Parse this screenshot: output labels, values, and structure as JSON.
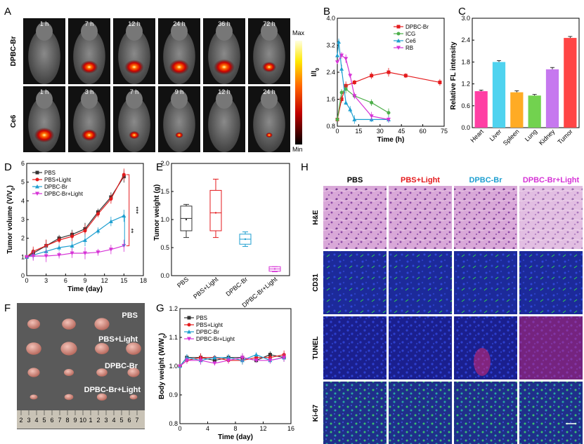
{
  "panels": {
    "A": {
      "label": "A",
      "rows": [
        {
          "name": "DPBC-Br",
          "times": [
            "1 h",
            "7 h",
            "12 h",
            "24 h",
            "36 h",
            "72 h"
          ],
          "signal": [
            0,
            0.7,
            0.8,
            0.85,
            0.9,
            0.5
          ]
        },
        {
          "name": "Ce6",
          "times": [
            "1 h",
            "3 h",
            "7 h",
            "9 h",
            "12 h",
            "24 h"
          ],
          "signal": [
            0.85,
            0.6,
            0.3,
            0.15,
            0,
            0.08
          ]
        }
      ],
      "colorbar": {
        "max": "Max",
        "min": "Min"
      }
    },
    "F": {
      "label": "F",
      "groups": [
        "PBS",
        "PBS+Light",
        "DPBC-Br",
        "DPBC-Br+Light"
      ],
      "ruler": [
        "2",
        "3",
        "4",
        "5",
        "6",
        "7",
        "8",
        "9",
        "10",
        "1",
        "2",
        "3",
        "4",
        "5",
        "6",
        "7"
      ]
    },
    "H": {
      "label": "H",
      "columns": [
        {
          "name": "PBS",
          "color": "#000000"
        },
        {
          "name": "PBS+Light",
          "color": "#e41a1c"
        },
        {
          "name": "DPBC-Br",
          "color": "#1e9fd0"
        },
        {
          "name": "DPBC-Br+Light",
          "color": "#d633d6"
        }
      ],
      "rows": [
        "H&E",
        "CD31",
        "TUNEL",
        "Ki-67"
      ]
    }
  },
  "chart_data": [
    {
      "panel": "B",
      "type": "line",
      "xlabel": "Time (h)",
      "ylabel": "I/I0",
      "xlim": [
        0,
        75
      ],
      "ylim": [
        0.8,
        4.0
      ],
      "xticks": [
        0,
        15,
        30,
        45,
        60,
        75
      ],
      "yticks": [
        0.8,
        1.6,
        2.4,
        3.2,
        4.0
      ],
      "legend_position": "top-right",
      "series": [
        {
          "name": "DPBC-Br",
          "color": "#e41a1c",
          "marker": "square",
          "x": [
            0,
            3,
            6,
            12,
            24,
            36,
            48,
            72
          ],
          "y": [
            1.0,
            1.6,
            2.0,
            2.1,
            2.3,
            2.4,
            2.3,
            2.1
          ]
        },
        {
          "name": "ICG",
          "color": "#4daf4a",
          "marker": "circle",
          "x": [
            0,
            3,
            6,
            12,
            24,
            36
          ],
          "y": [
            1.0,
            1.8,
            1.9,
            1.7,
            1.5,
            1.2
          ]
        },
        {
          "name": "Ce6",
          "color": "#1e9fd0",
          "marker": "triangle",
          "x": [
            0,
            1,
            3,
            6,
            9,
            12,
            24,
            36
          ],
          "y": [
            2.9,
            3.3,
            2.5,
            1.5,
            1.3,
            1.0,
            1.0,
            1.0
          ]
        },
        {
          "name": "RB",
          "color": "#d633d6",
          "marker": "triangle-down",
          "x": [
            0,
            3,
            6,
            9,
            12,
            24,
            36
          ],
          "y": [
            2.7,
            2.9,
            2.8,
            2.3,
            1.7,
            1.1,
            1.0
          ]
        }
      ]
    },
    {
      "panel": "C",
      "type": "bar",
      "ylabel": "Relative FL intensity",
      "ylim": [
        0,
        3.0
      ],
      "yticks": [
        0.0,
        0.6,
        1.2,
        1.8,
        2.4,
        3.0
      ],
      "categories": [
        "Heart",
        "Liver",
        "Spleen",
        "Lung",
        "Kidney",
        "Tumor"
      ],
      "values": [
        1.0,
        1.8,
        0.97,
        0.88,
        1.6,
        2.46
      ],
      "errors": [
        0.03,
        0.04,
        0.04,
        0.03,
        0.05,
        0.04
      ],
      "colors": [
        "#ff3fa4",
        "#4fd3ef",
        "#ffab24",
        "#72d24f",
        "#c678ef",
        "#ff4545"
      ]
    },
    {
      "panel": "D",
      "type": "line",
      "xlabel": "Time (day)",
      "ylabel": "Tumor volume (V/V0)",
      "xlim": [
        0,
        18
      ],
      "ylim": [
        0,
        6
      ],
      "xticks": [
        0,
        3,
        6,
        9,
        12,
        15,
        18
      ],
      "yticks": [
        0,
        1,
        2,
        3,
        4,
        5,
        6
      ],
      "legend_position": "top-left",
      "annotations": [
        "***",
        "**"
      ],
      "series": [
        {
          "name": "PBS",
          "color": "#333333",
          "marker": "square",
          "x": [
            0,
            1,
            3,
            5,
            7,
            9,
            11,
            13,
            15
          ],
          "y": [
            1.0,
            1.2,
            1.6,
            2.0,
            2.2,
            2.5,
            3.4,
            4.2,
            5.3
          ]
        },
        {
          "name": "PBS+Light",
          "color": "#e41a1c",
          "marker": "circle",
          "x": [
            0,
            1,
            3,
            5,
            7,
            9,
            11,
            13,
            15
          ],
          "y": [
            1.0,
            1.3,
            1.6,
            1.9,
            2.1,
            2.4,
            3.3,
            4.1,
            5.4
          ]
        },
        {
          "name": "DPBC-Br",
          "color": "#1e9fd0",
          "marker": "triangle",
          "x": [
            0,
            1,
            3,
            5,
            7,
            9,
            11,
            13,
            15
          ],
          "y": [
            1.0,
            1.1,
            1.3,
            1.5,
            1.6,
            1.9,
            2.4,
            2.9,
            3.2
          ]
        },
        {
          "name": "DPBC-Br+Light",
          "color": "#d633d6",
          "marker": "triangle-down",
          "x": [
            0,
            1,
            3,
            5,
            7,
            9,
            11,
            13,
            15
          ],
          "y": [
            1.0,
            1.05,
            1.05,
            1.1,
            1.2,
            1.2,
            1.25,
            1.4,
            1.6
          ]
        }
      ]
    },
    {
      "panel": "E",
      "type": "box",
      "ylabel": "Tumor weight (g)",
      "ylim": [
        0.0,
        2.0
      ],
      "yticks": [
        0.0,
        0.5,
        1.0,
        1.5,
        2.0
      ],
      "categories": [
        "PBS",
        "PBS+Light",
        "DPBC-Br",
        "DPBC-Br+Light"
      ],
      "colors": [
        "#333333",
        "#e41a1c",
        "#1e9fd0",
        "#d633d6"
      ],
      "boxes": [
        {
          "min": 0.68,
          "q1": 0.8,
          "median": 1.02,
          "mean": 1.0,
          "q3": 1.24,
          "max": 1.27
        },
        {
          "min": 0.68,
          "q1": 0.8,
          "median": 1.12,
          "mean": 1.12,
          "q3": 1.52,
          "max": 1.72
        },
        {
          "min": 0.52,
          "q1": 0.56,
          "median": 0.65,
          "mean": 0.65,
          "q3": 0.74,
          "max": 0.78
        },
        {
          "min": 0.07,
          "q1": 0.08,
          "median": 0.12,
          "mean": 0.12,
          "q3": 0.16,
          "max": 0.16
        }
      ]
    },
    {
      "panel": "G",
      "type": "line",
      "xlabel": "Time (day)",
      "ylabel": "Body weight (W/W0)",
      "xlim": [
        0,
        16
      ],
      "ylim": [
        0.8,
        1.2
      ],
      "xticks": [
        0,
        4,
        8,
        12,
        16
      ],
      "yticks": [
        0.8,
        0.9,
        1.0,
        1.1,
        1.2
      ],
      "legend_position": "top-left",
      "series": [
        {
          "name": "PBS",
          "color": "#333333",
          "marker": "square",
          "x": [
            0,
            1,
            3,
            5,
            7,
            9,
            11,
            13,
            15
          ],
          "y": [
            1.0,
            1.03,
            1.03,
            1.02,
            1.03,
            1.03,
            1.02,
            1.04,
            1.03
          ]
        },
        {
          "name": "PBS+Light",
          "color": "#e41a1c",
          "marker": "circle",
          "x": [
            0,
            1,
            3,
            5,
            7,
            9,
            11,
            13,
            15
          ],
          "y": [
            1.0,
            1.02,
            1.03,
            1.03,
            1.02,
            1.02,
            1.03,
            1.03,
            1.04
          ]
        },
        {
          "name": "DPBC-Br",
          "color": "#1e9fd0",
          "marker": "triangle",
          "x": [
            0,
            1,
            3,
            5,
            7,
            9,
            11,
            13,
            15
          ],
          "y": [
            1.0,
            1.03,
            1.02,
            1.03,
            1.03,
            1.02,
            1.04,
            1.02,
            1.03
          ]
        },
        {
          "name": "DPBC-Br+Light",
          "color": "#d633d6",
          "marker": "triangle-down",
          "x": [
            0,
            1,
            3,
            5,
            7,
            9,
            11,
            13,
            15
          ],
          "y": [
            1.0,
            1.02,
            1.02,
            1.01,
            1.02,
            1.03,
            1.02,
            1.02,
            1.03
          ]
        }
      ]
    }
  ]
}
